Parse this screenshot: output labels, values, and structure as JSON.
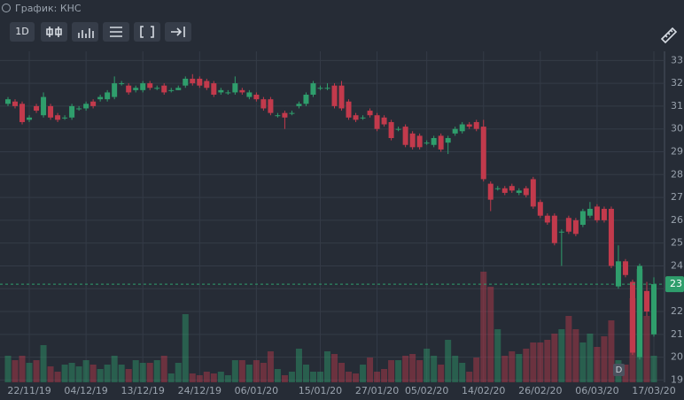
{
  "header": {
    "title": "График: КНС",
    "interval": "1D"
  },
  "chart_data": {
    "type": "candlestick",
    "categories": [
      null,
      null,
      null,
      "22/11/19",
      null,
      null,
      null,
      null,
      null,
      null,
      null,
      "04/12/19",
      null,
      null,
      null,
      null,
      null,
      null,
      null,
      "13/12/19",
      null,
      null,
      null,
      null,
      null,
      null,
      null,
      "24/12/19",
      null,
      null,
      null,
      null,
      null,
      null,
      null,
      "06/01/20",
      null,
      null,
      null,
      null,
      null,
      null,
      null,
      null,
      "15/01/20",
      null,
      null,
      null,
      null,
      null,
      null,
      null,
      "27/01/20",
      null,
      null,
      null,
      null,
      null,
      null,
      "05/02/20",
      null,
      null,
      null,
      null,
      null,
      null,
      null,
      "14/02/20",
      null,
      null,
      null,
      null,
      null,
      null,
      null,
      "26/02/20",
      null,
      null,
      null,
      null,
      null,
      null,
      null,
      "06/03/20",
      null,
      null,
      null,
      null,
      null,
      null,
      null,
      "17/03/20"
    ],
    "open": [
      31.1,
      31.2,
      31.1,
      30.4,
      31.0,
      30.6,
      31.0,
      30.6,
      30.5,
      30.5,
      30.9,
      30.9,
      31.2,
      31.3,
      31.3,
      31.4,
      32.0,
      31.9,
      31.7,
      31.7,
      32.0,
      31.8,
      31.9,
      31.7,
      31.7,
      31.9,
      32.2,
      32.2,
      32.1,
      32.0,
      31.6,
      31.6,
      31.6,
      31.7,
      31.4,
      31.5,
      31.3,
      31.3,
      30.6,
      30.7,
      30.7,
      31.0,
      31.1,
      31.5,
      31.8,
      31.8,
      31.9,
      31.9,
      31.2,
      30.6,
      30.5,
      30.8,
      30.6,
      30.5,
      30.3,
      30.0,
      30.1,
      29.8,
      29.7,
      29.4,
      29.3,
      29.7,
      29.4,
      29.8,
      29.9,
      30.2,
      30.3,
      30.1,
      27.6,
      27.4,
      27.4,
      27.5,
      27.2,
      27.4,
      27.8,
      26.8,
      26.2,
      26.2,
      25.5,
      26.1,
      26.0,
      25.8,
      26.2,
      26.6,
      26.5,
      26.5,
      23.1,
      24.2,
      23.3,
      20.0,
      22.9,
      21.0
    ],
    "high": [
      31.4,
      31.3,
      31.2,
      30.6,
      31.1,
      31.6,
      31.1,
      30.7,
      30.6,
      31.1,
      31.0,
      31.2,
      31.3,
      31.5,
      31.7,
      32.3,
      32.1,
      32.0,
      31.9,
      32.1,
      32.1,
      31.9,
      32.0,
      31.8,
      31.9,
      32.3,
      32.4,
      32.3,
      32.2,
      32.1,
      31.8,
      31.7,
      32.3,
      31.8,
      31.7,
      31.6,
      31.4,
      31.4,
      30.7,
      30.8,
      30.8,
      31.2,
      31.6,
      32.1,
      31.9,
      32.0,
      32.0,
      32.1,
      31.3,
      30.7,
      30.6,
      30.9,
      30.7,
      30.6,
      30.4,
      30.1,
      30.2,
      29.9,
      29.8,
      29.5,
      29.7,
      29.8,
      29.7,
      30.1,
      30.3,
      30.3,
      30.4,
      30.4,
      27.7,
      27.5,
      27.5,
      27.6,
      27.4,
      27.5,
      27.9,
      26.9,
      26.3,
      26.3,
      25.6,
      26.2,
      26.1,
      26.5,
      26.8,
      26.7,
      26.6,
      26.6,
      24.9,
      24.3,
      23.4,
      24.1,
      23.3,
      23.5
    ],
    "low": [
      31.0,
      30.9,
      30.2,
      30.3,
      30.7,
      30.5,
      30.4,
      30.3,
      30.4,
      30.4,
      30.8,
      30.8,
      30.9,
      31.2,
      31.2,
      31.3,
      31.9,
      31.5,
      31.6,
      31.6,
      31.7,
      31.7,
      31.5,
      31.6,
      31.7,
      31.8,
      31.9,
      31.8,
      31.7,
      31.4,
      31.5,
      31.5,
      31.5,
      31.5,
      31.3,
      31.2,
      30.8,
      30.6,
      30.5,
      30.0,
      30.6,
      30.9,
      31.0,
      31.4,
      31.7,
      31.7,
      30.9,
      30.8,
      30.4,
      30.3,
      30.4,
      30.5,
      29.9,
      30.1,
      29.5,
      29.9,
      29.2,
      29.1,
      29.1,
      29.3,
      29.2,
      29.0,
      28.9,
      29.7,
      29.8,
      30.0,
      29.9,
      27.7,
      26.4,
      27.3,
      27.1,
      27.2,
      27.1,
      27.0,
      26.5,
      26.1,
      25.8,
      24.9,
      24.0,
      25.4,
      25.3,
      25.7,
      26.1,
      25.9,
      25.9,
      23.9,
      23.0,
      23.5,
      20.1,
      19.9,
      21.8,
      20.9
    ],
    "close": [
      31.3,
      31.0,
      30.3,
      30.5,
      30.8,
      31.4,
      30.5,
      30.4,
      30.5,
      31.0,
      30.9,
      31.1,
      31.0,
      31.4,
      31.6,
      32.0,
      32.0,
      31.6,
      31.8,
      32.0,
      31.8,
      31.8,
      31.6,
      31.7,
      31.8,
      32.2,
      32.0,
      31.9,
      31.8,
      31.5,
      31.7,
      31.6,
      32.0,
      31.6,
      31.6,
      31.3,
      30.9,
      30.7,
      30.6,
      30.5,
      30.7,
      31.1,
      31.5,
      32.0,
      31.8,
      31.8,
      31.0,
      30.9,
      30.5,
      30.4,
      30.5,
      30.6,
      30.0,
      30.2,
      29.6,
      30.0,
      29.3,
      29.2,
      29.2,
      29.4,
      29.6,
      29.1,
      29.6,
      30.0,
      30.2,
      30.1,
      30.0,
      27.8,
      26.9,
      27.4,
      27.2,
      27.3,
      27.3,
      27.1,
      26.6,
      26.2,
      25.9,
      25.0,
      25.5,
      25.5,
      25.4,
      26.4,
      26.5,
      26.0,
      26.0,
      24.0,
      24.2,
      23.6,
      20.2,
      24.0,
      22.0,
      23.2
    ],
    "volume": [
      30,
      25,
      30,
      22,
      25,
      42,
      18,
      12,
      20,
      22,
      18,
      25,
      20,
      15,
      20,
      30,
      20,
      15,
      25,
      22,
      22,
      25,
      30,
      10,
      22,
      77,
      10,
      8,
      12,
      10,
      12,
      8,
      25,
      25,
      20,
      25,
      22,
      35,
      15,
      8,
      12,
      38,
      20,
      12,
      12,
      35,
      32,
      22,
      12,
      10,
      20,
      28,
      12,
      15,
      25,
      25,
      30,
      32,
      25,
      38,
      30,
      20,
      48,
      30,
      22,
      12,
      28,
      125,
      108,
      60,
      30,
      35,
      32,
      38,
      45,
      45,
      48,
      55,
      60,
      75,
      60,
      45,
      55,
      40,
      52,
      70,
      25,
      20,
      95,
      128,
      75,
      30
    ],
    "up_color": "#2f9e6c",
    "down_color": "#c23a4c",
    "ylim": [
      18.9,
      33.4
    ],
    "yticks": [
      19,
      20,
      21,
      22,
      23,
      24,
      25,
      26,
      27,
      28,
      29,
      30,
      31,
      32,
      33
    ],
    "grid": true,
    "last_price": {
      "value": 23.2,
      "label": "23"
    },
    "marker": "D"
  }
}
